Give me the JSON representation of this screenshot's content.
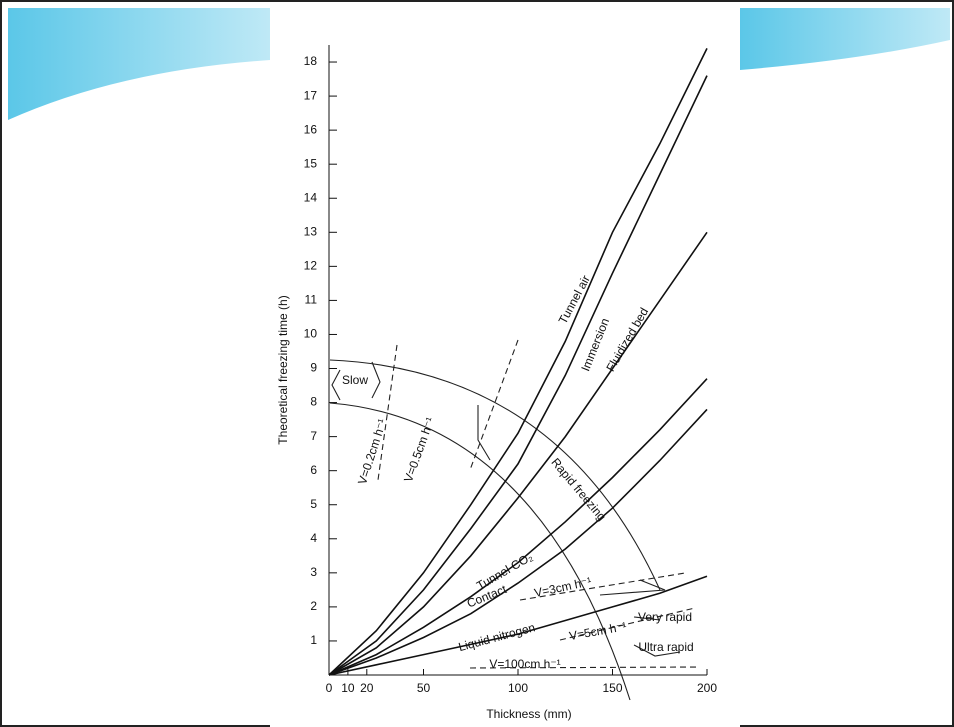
{
  "chart_data": {
    "type": "line",
    "x_label": "Thickness (mm)",
    "y_label": "Theoretical freezing time (h)",
    "x": [
      0,
      25,
      50,
      75,
      100,
      125,
      150,
      175,
      200
    ],
    "series": [
      {
        "name": "Tunnel air",
        "color": "#111111",
        "values": [
          0,
          1.3,
          3,
          5,
          7.1,
          9.8,
          13,
          15.6,
          18.4
        ]
      },
      {
        "name": "Immersion",
        "color": "#111111",
        "values": [
          0,
          1.0,
          2.5,
          4.3,
          6.2,
          8.8,
          11.8,
          14.7,
          17.6
        ]
      },
      {
        "name": "Fluidized bed",
        "color": "#111111",
        "values": [
          0,
          0.8,
          2,
          3.5,
          5.2,
          7,
          9,
          11,
          13
        ]
      },
      {
        "name": "Tunnel CO₂",
        "color": "#111111",
        "values": [
          0,
          0.6,
          1.4,
          2.3,
          3.3,
          4.5,
          5.8,
          7.2,
          8.7
        ]
      },
      {
        "name": "Contact",
        "color": "#111111",
        "values": [
          0,
          0.5,
          1.1,
          1.8,
          2.7,
          3.7,
          4.9,
          6.3,
          7.8
        ]
      },
      {
        "name": "Liquid nitrogen",
        "color": "#111111",
        "values": [
          0,
          0.3,
          0.6,
          0.9,
          1.2,
          1.6,
          2.0,
          2.4,
          2.9
        ]
      }
    ],
    "annotations": [
      "Slow",
      "Rapid freezing",
      "Very rapid",
      "Ultra rapid",
      "V=0.2cm h⁻¹",
      "V=0.5cm h⁻¹",
      "V=3cm h⁻¹",
      "V=5cm h⁻¹",
      "V=100cm h⁻¹"
    ],
    "xlim": [
      0,
      200
    ],
    "ylim": [
      0,
      18.5
    ],
    "xticks": [
      0,
      10,
      20,
      50,
      100,
      150,
      200
    ],
    "yticks": [
      1,
      2,
      3,
      4,
      5,
      6,
      7,
      8,
      9,
      10,
      11,
      12,
      13,
      14,
      15,
      16,
      17,
      18
    ]
  }
}
